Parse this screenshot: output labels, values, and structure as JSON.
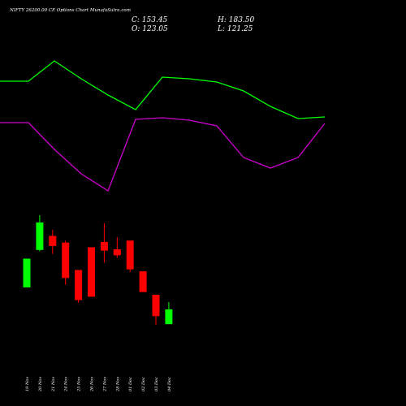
{
  "chart_data": {
    "type": "candlestick",
    "title": "NIFTY 26200.00  CE Options  Chart MunafaSutra.com",
    "ohlc": {
      "close": "C: 153.45",
      "high": "H: 183.50",
      "open": "O: 123.05",
      "low": "L: 121.25"
    },
    "categories": [
      "19 Nov",
      "20 Nov",
      "21 Nov",
      "24 Nov",
      "25 Nov",
      "26 Nov",
      "27 Nov",
      "28 Nov",
      "01 Dec",
      "02 Dec",
      "03 Dec",
      "04 Dec"
    ],
    "candles": [
      {
        "open": 86,
        "close": 129,
        "high": 129,
        "low": 86
      },
      {
        "open": 142,
        "close": 183,
        "high": 194,
        "low": 140
      },
      {
        "open": 163,
        "close": 148,
        "high": 172,
        "low": 136
      },
      {
        "open": 153,
        "close": 100,
        "high": 156,
        "low": 90
      },
      {
        "open": 112,
        "close": 67,
        "high": 112,
        "low": 63
      },
      {
        "open": 146,
        "close": 72,
        "high": 146,
        "low": 72
      },
      {
        "open": 154,
        "close": 141,
        "high": 182,
        "low": 123
      },
      {
        "open": 143,
        "close": 134,
        "high": 161,
        "low": 130
      },
      {
        "open": 156,
        "close": 113,
        "high": 156,
        "low": 109
      },
      {
        "open": 110,
        "close": 79,
        "high": 110,
        "low": 79
      },
      {
        "open": 75,
        "close": 43,
        "high": 75,
        "low": 30
      },
      {
        "open": 31,
        "close": 53,
        "high": 64,
        "low": 31
      }
    ],
    "up_color": "#00ff00",
    "down_color": "#ff0000",
    "upper_line": {
      "color": "#00ff00",
      "points": [
        [
          0,
          100
        ],
        [
          35,
          100
        ],
        [
          67,
          75
        ],
        [
          100,
          97
        ],
        [
          133,
          117
        ],
        [
          167,
          135
        ],
        [
          200,
          95
        ],
        [
          233,
          97
        ],
        [
          267,
          101
        ],
        [
          300,
          112
        ],
        [
          333,
          131
        ],
        [
          367,
          146
        ],
        [
          400,
          144
        ]
      ]
    },
    "lower_line": {
      "color": "#cc00cc",
      "points": [
        [
          0,
          151
        ],
        [
          35,
          151
        ],
        [
          67,
          184
        ],
        [
          100,
          214
        ],
        [
          133,
          235
        ],
        [
          167,
          147
        ],
        [
          200,
          145
        ],
        [
          233,
          148
        ],
        [
          267,
          155
        ],
        [
          300,
          194
        ],
        [
          333,
          207
        ],
        [
          367,
          194
        ],
        [
          400,
          152
        ]
      ]
    }
  }
}
